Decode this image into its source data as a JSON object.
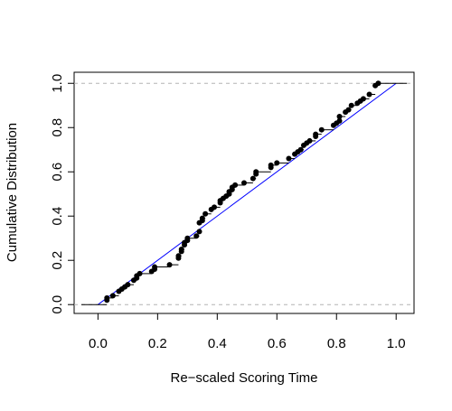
{
  "chart_data": {
    "type": "ecdf",
    "xlabel": "Re−scaled Scoring Time",
    "ylabel": "Cumulative Distribution",
    "xlim": [
      -0.08,
      1.06
    ],
    "ylim": [
      -0.04,
      1.05
    ],
    "xticks": [
      {
        "value": 0,
        "label": "0.0"
      },
      0.2,
      0.4,
      0.6,
      0.8,
      {
        "value": 1,
        "label": "1.0"
      }
    ],
    "yticks": [
      {
        "value": 0,
        "label": "0.0"
      },
      0.2,
      0.4,
      0.6,
      0.8,
      {
        "value": 1,
        "label": "1.0"
      }
    ],
    "hlines": [
      0,
      1
    ],
    "hline_color": "#b3b3b3",
    "reference_line": {
      "x": [
        0,
        1
      ],
      "values": [
        0,
        1
      ],
      "color": "#0000ff"
    },
    "series": [
      {
        "color": "#000000",
        "x": [
          0.03,
          0.03,
          0.05,
          0.07,
          0.08,
          0.09,
          0.1,
          0.12,
          0.13,
          0.13,
          0.14,
          0.18,
          0.19,
          0.19,
          0.24,
          0.27,
          0.27,
          0.28,
          0.28,
          0.29,
          0.29,
          0.3,
          0.3,
          0.33,
          0.34,
          0.34,
          0.35,
          0.35,
          0.36,
          0.38,
          0.39,
          0.41,
          0.41,
          0.42,
          0.43,
          0.44,
          0.44,
          0.45,
          0.45,
          0.46,
          0.49,
          0.52,
          0.53,
          0.53,
          0.58,
          0.58,
          0.6,
          0.64,
          0.66,
          0.67,
          0.68,
          0.69,
          0.7,
          0.71,
          0.73,
          0.73,
          0.75,
          0.79,
          0.8,
          0.81,
          0.81,
          0.83,
          0.84,
          0.85,
          0.87,
          0.88,
          0.89,
          0.91,
          0.93,
          0.94
        ],
        "values": [
          0.02,
          0.03,
          0.04,
          0.06,
          0.07,
          0.08,
          0.09,
          0.11,
          0.12,
          0.13,
          0.14,
          0.15,
          0.16,
          0.17,
          0.18,
          0.21,
          0.22,
          0.24,
          0.25,
          0.27,
          0.28,
          0.29,
          0.3,
          0.31,
          0.33,
          0.37,
          0.38,
          0.39,
          0.41,
          0.43,
          0.44,
          0.46,
          0.47,
          0.48,
          0.49,
          0.5,
          0.51,
          0.52,
          0.53,
          0.54,
          0.55,
          0.57,
          0.59,
          0.6,
          0.62,
          0.63,
          0.64,
          0.66,
          0.68,
          0.69,
          0.7,
          0.72,
          0.73,
          0.74,
          0.76,
          0.77,
          0.79,
          0.81,
          0.82,
          0.83,
          0.85,
          0.87,
          0.88,
          0.9,
          0.91,
          0.92,
          0.93,
          0.95,
          0.99,
          1.0
        ]
      }
    ]
  }
}
